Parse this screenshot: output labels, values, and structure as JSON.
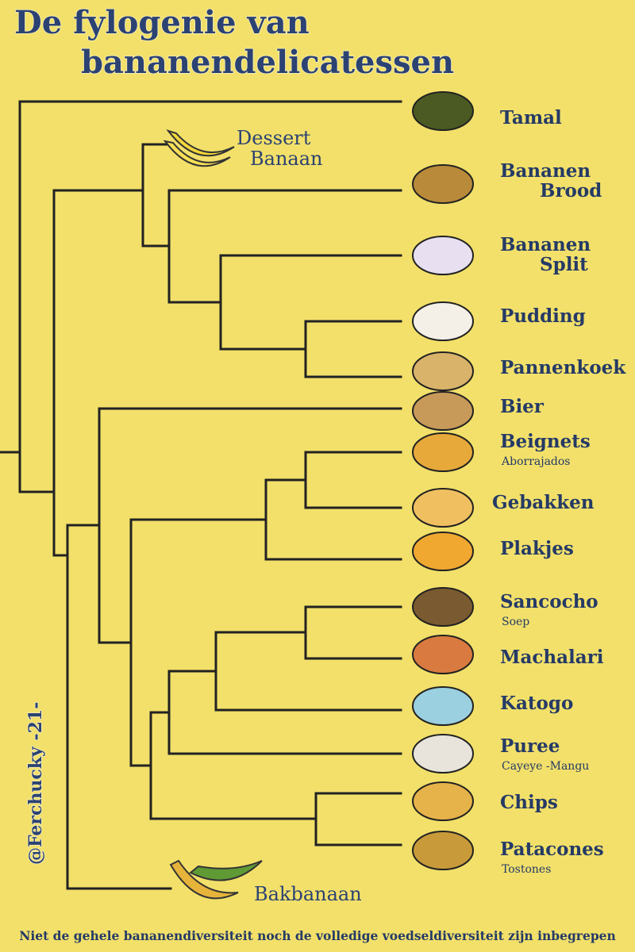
{
  "title": {
    "line1": "De fylogenie van",
    "line2": "bananendelicatessen"
  },
  "groups": {
    "dessert": [
      "Dessert",
      "Banaan"
    ],
    "cooking": "Bakbanaan"
  },
  "leaves": [
    {
      "label": [
        "Tamal"
      ]
    },
    {
      "label": [
        "Bananen",
        "Brood"
      ]
    },
    {
      "label": [
        "Bananen",
        "Split"
      ]
    },
    {
      "label": [
        "Pudding"
      ]
    },
    {
      "label": [
        "Pannenkoek"
      ]
    },
    {
      "label": [
        "Bier"
      ]
    },
    {
      "label": [
        "Beignets"
      ],
      "sublabel": "Aborrajados"
    },
    {
      "label": [
        "Gebakken"
      ]
    },
    {
      "label": [
        "Plakjes"
      ]
    },
    {
      "label": [
        "Sancocho"
      ],
      "sublabel": "Soep"
    },
    {
      "label": [
        "Machalari"
      ]
    },
    {
      "label": [
        "Katogo"
      ]
    },
    {
      "label": [
        "Puree"
      ],
      "sublabel": "Cayeye -Mangu"
    },
    {
      "label": [
        "Chips"
      ]
    },
    {
      "label": [
        "Patacones"
      ],
      "sublabel": "Tostones"
    }
  ],
  "signature": "@Ferchucky -21-",
  "footer": "Niet de gehele bananendiversiteit noch de volledige voedseldiversiteit zijn inbegrepen"
}
